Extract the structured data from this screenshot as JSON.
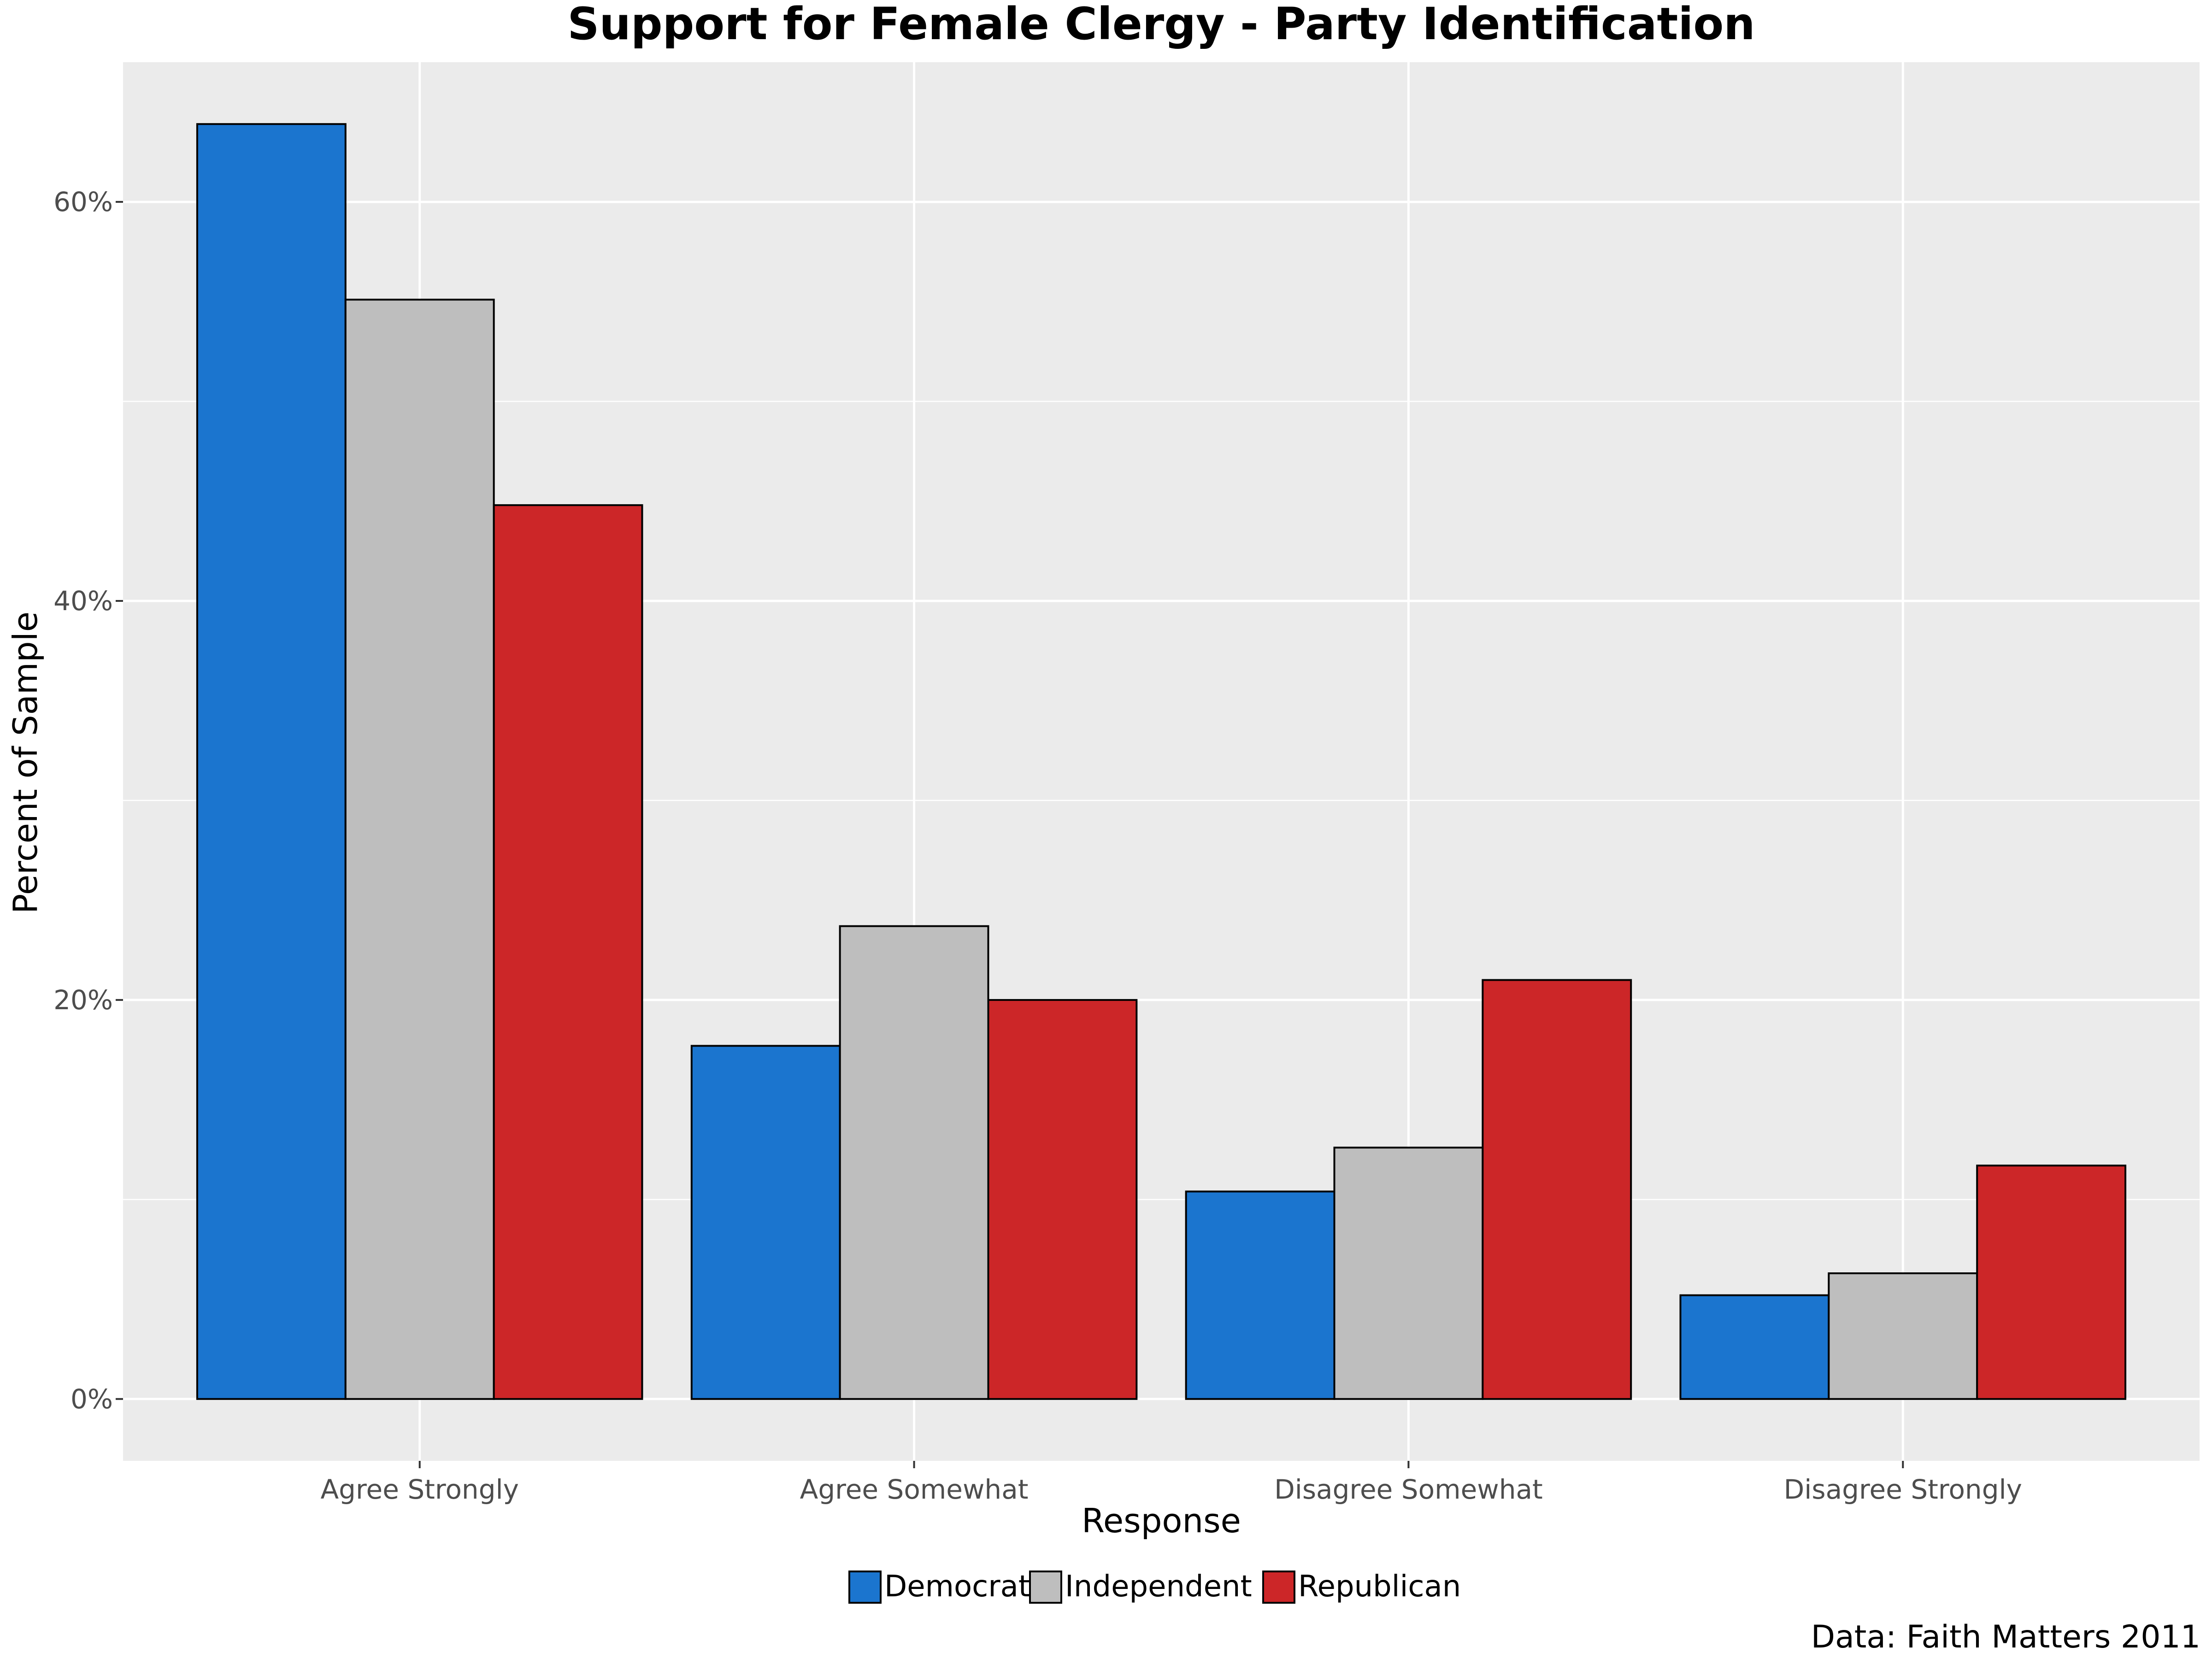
{
  "chart_data": {
    "type": "bar",
    "title": "Support for Female Clergy - Party Identification",
    "xlabel": "Response",
    "ylabel": "Percent of Sample",
    "caption": "Data: Faith Matters 2011",
    "categories": [
      "Agree Strongly",
      "Agree Somewhat",
      "Disagree Somewhat",
      "Disagree Strongly"
    ],
    "series": [
      {
        "name": "Democrat",
        "color": "#1b75cf",
        "values": [
          63.9,
          17.7,
          10.4,
          5.2
        ]
      },
      {
        "name": "Independent",
        "color": "#bebebe",
        "values": [
          55.1,
          23.7,
          12.6,
          6.3
        ]
      },
      {
        "name": "Republican",
        "color": "#cc2628",
        "values": [
          44.8,
          20.0,
          21.0,
          11.7
        ]
      }
    ],
    "ylim": [
      -3.1,
      67.0
    ],
    "yticks": [
      0,
      20,
      40,
      60
    ],
    "ytick_labels": [
      "0%",
      "20%",
      "40%",
      "60%"
    ],
    "grid": true,
    "legend_position": "bottom",
    "panel_background": "#ebebeb"
  }
}
